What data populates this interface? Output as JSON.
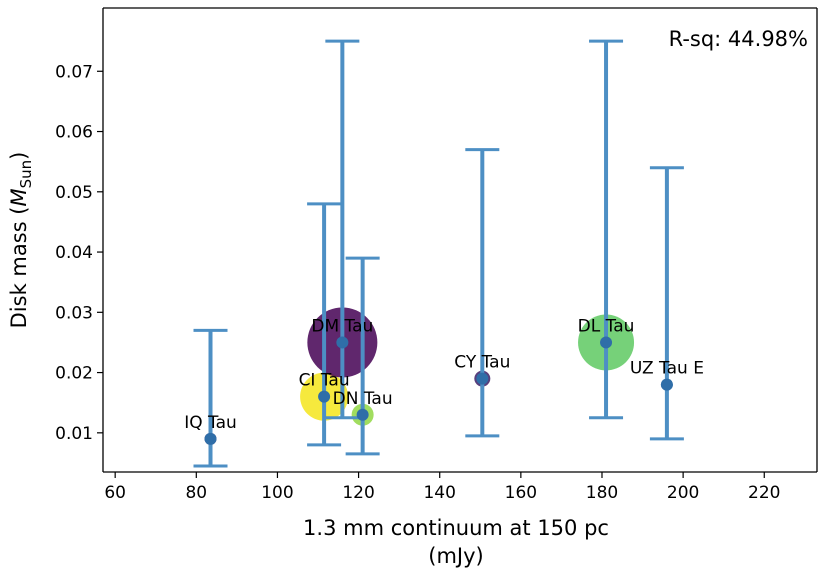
{
  "chart_data": {
    "type": "scatter",
    "title": "",
    "xlabel_line1": "1.3 mm continuum at 150 pc",
    "xlabel_line2": "(mJy)",
    "ylabel_prefix": "Disk mass (",
    "ylabel_symbol": "M",
    "ylabel_subscript": "Sun",
    "ylabel_suffix": ")",
    "annotation": "R-sq: 44.98%",
    "xlim": [
      57,
      233
    ],
    "ylim": [
      0.0035,
      0.0805
    ],
    "xticks": [
      60,
      80,
      100,
      120,
      140,
      160,
      180,
      200,
      220
    ],
    "yticks": [
      0.01,
      0.02,
      0.03,
      0.04,
      0.05,
      0.06,
      0.07
    ],
    "ytick_labels": [
      "0.01",
      "0.02",
      "0.03",
      "0.04",
      "0.05",
      "0.06",
      "0.07"
    ],
    "errorbar_color": "#4d8fc4",
    "marker_color": "#2f6ea8",
    "points": [
      {
        "name": "IQ Tau",
        "x": 83.5,
        "y": 0.009,
        "ylow": 0.0045,
        "yhigh": 0.027,
        "bubble_color": "#3b1f66",
        "bubble_size": 6
      },
      {
        "name": "CI Tau",
        "x": 111.5,
        "y": 0.016,
        "ylow": 0.008,
        "yhigh": 0.048,
        "bubble_color": "#f5e51b",
        "bubble_size": 24
      },
      {
        "name": "DM Tau",
        "x": 116,
        "y": 0.025,
        "ylow": 0.0125,
        "yhigh": 0.075,
        "bubble_color": "#440154",
        "bubble_size": 35
      },
      {
        "name": "DN Tau",
        "x": 121,
        "y": 0.013,
        "ylow": 0.0065,
        "yhigh": 0.039,
        "bubble_color": "#90d743",
        "bubble_size": 11
      },
      {
        "name": "CY Tau",
        "x": 150.5,
        "y": 0.019,
        "ylow": 0.0095,
        "yhigh": 0.057,
        "bubble_color": "#3b1f66",
        "bubble_size": 8
      },
      {
        "name": "DL Tau",
        "x": 181,
        "y": 0.025,
        "ylow": 0.0125,
        "yhigh": 0.075,
        "bubble_color": "#5ec962",
        "bubble_size": 28
      },
      {
        "name": "UZ Tau E",
        "x": 196,
        "y": 0.018,
        "ylow": 0.009,
        "yhigh": 0.054,
        "bubble_color": "#2f6ea8",
        "bubble_size": 6
      }
    ]
  }
}
